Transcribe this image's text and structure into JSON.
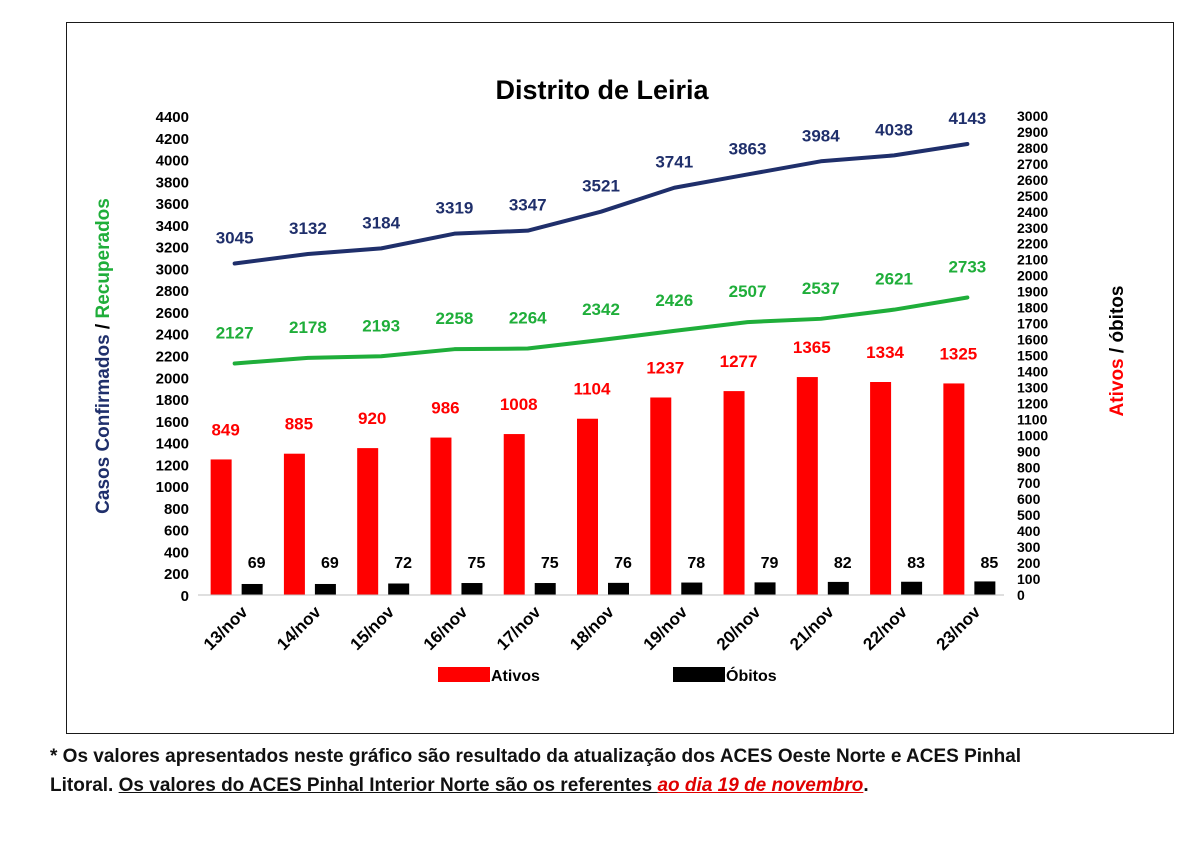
{
  "chart_data": {
    "type": "bar",
    "title": "Distrito de Leiria",
    "categories": [
      "13/nov",
      "14/nov",
      "15/nov",
      "16/nov",
      "17/nov",
      "18/nov",
      "19/nov",
      "20/nov",
      "21/nov",
      "22/nov",
      "23/nov"
    ],
    "y_left": {
      "label_part1": "Casos Confirmados",
      "label_sep": " / ",
      "label_part2": "Recuperados",
      "ylim": [
        0,
        4400
      ],
      "ticks": [
        0,
        200,
        400,
        600,
        800,
        1000,
        1200,
        1400,
        1600,
        1800,
        2000,
        2200,
        2400,
        2600,
        2800,
        3000,
        3200,
        3400,
        3600,
        3800,
        4000,
        4200,
        4400
      ]
    },
    "y_right": {
      "label_part1": "Ativos",
      "label_sep": " / ",
      "label_part2": "óbitos",
      "ylim": [
        0,
        3000
      ],
      "ticks": [
        0,
        100,
        200,
        300,
        400,
        500,
        600,
        700,
        800,
        900,
        1000,
        1100,
        1200,
        1300,
        1400,
        1500,
        1600,
        1700,
        1800,
        1900,
        2000,
        2100,
        2200,
        2300,
        2400,
        2500,
        2600,
        2700,
        2800,
        2900,
        3000
      ]
    },
    "series": [
      {
        "key": "confirmados",
        "type": "line",
        "axis": "left",
        "color": "#1f2f6b",
        "values": [
          3045,
          3132,
          3184,
          3319,
          3347,
          3521,
          3741,
          3863,
          3984,
          4038,
          4143
        ]
      },
      {
        "key": "recuperados",
        "type": "line",
        "axis": "left",
        "color": "#1fae3a",
        "values": [
          2127,
          2178,
          2193,
          2258,
          2264,
          2342,
          2426,
          2507,
          2537,
          2621,
          2733
        ]
      },
      {
        "key": "ativos",
        "name": "Ativos",
        "type": "bar",
        "axis": "right",
        "color": "#ff0000",
        "values": [
          849,
          885,
          920,
          986,
          1008,
          1104,
          1237,
          1277,
          1365,
          1334,
          1325
        ]
      },
      {
        "key": "obitos",
        "name": "Óbitos",
        "type": "bar",
        "axis": "right",
        "color": "#000000",
        "values": [
          69,
          69,
          72,
          75,
          75,
          76,
          78,
          79,
          82,
          83,
          85
        ]
      }
    ],
    "legend_position": "bottom",
    "grid": false
  },
  "footnote": {
    "line1": "* Os valores apresentados neste gráfico são resultado da atualização dos ACES Oeste Norte e ACES Pinhal",
    "line2_plain": "Litoral. ",
    "line2_underlined": "Os valores do ACES Pinhal Interior Norte são os referentes ",
    "line2_red": "ao dia 19 de novembro",
    "line2_end": "."
  }
}
